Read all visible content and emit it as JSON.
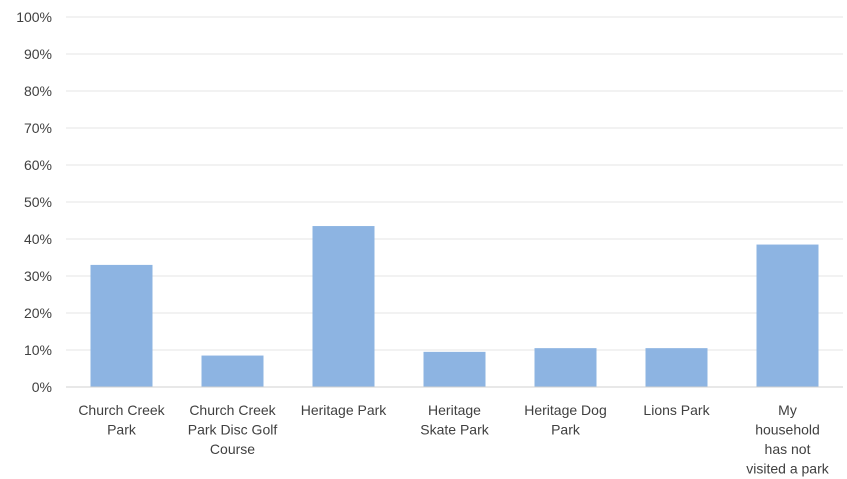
{
  "chart_data": {
    "type": "bar",
    "categories": [
      [
        "Church Creek",
        "Park"
      ],
      [
        "Church Creek",
        "Park Disc Golf",
        "Course"
      ],
      [
        "Heritage Park"
      ],
      [
        "Heritage",
        "Skate Park"
      ],
      [
        "Heritage Dog",
        "Park"
      ],
      [
        "Lions Park"
      ],
      [
        "My",
        "household",
        "has not",
        "visited a park"
      ]
    ],
    "values": [
      33,
      8.5,
      43.5,
      9.5,
      10.5,
      10.5,
      38.5
    ],
    "ylim": [
      0,
      100
    ],
    "yticks": [
      "0%",
      "10%",
      "20%",
      "30%",
      "40%",
      "50%",
      "60%",
      "70%",
      "80%",
      "90%",
      "100%"
    ],
    "grid": true,
    "bar_color": "#8db4e2",
    "grid_color": "#e4e4e4",
    "text_color": "#404040"
  }
}
